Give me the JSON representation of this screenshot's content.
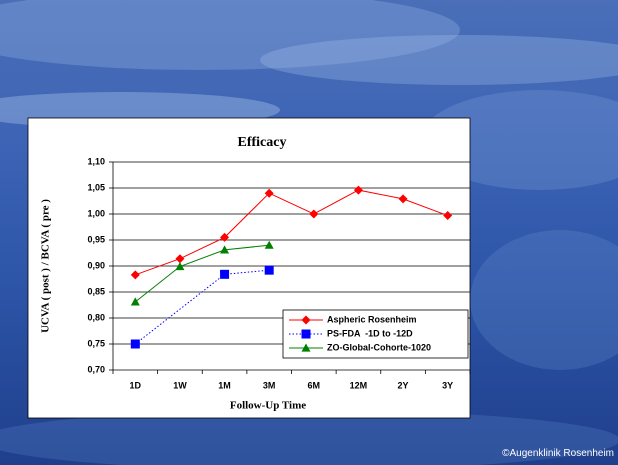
{
  "chart_data": {
    "type": "line",
    "title": "Efficacy",
    "x_label": "Follow-Up Time",
    "y_label": "UCVA ( post ) / BCVA ( pre )",
    "categories": [
      "1D",
      "1W",
      "1M",
      "3M",
      "6M",
      "12M",
      "2Y",
      "3Y"
    ],
    "series": [
      {
        "name": "Aspheric Rosenheim",
        "color": "#ff0000",
        "marker": "diamond",
        "dash": "solid",
        "values": [
          0.883,
          0.914,
          0.955,
          1.04,
          1.0,
          1.046,
          1.029,
          0.997
        ]
      },
      {
        "name": "PS-FDA  -1D to -12D",
        "color": "#0000ff",
        "marker": "square",
        "dash": "dotted",
        "values": [
          0.75,
          null,
          0.884,
          0.892,
          null,
          null,
          null,
          null
        ]
      },
      {
        "name": "ZO-Global-Cohorte-1020",
        "color": "#008000",
        "marker": "triangle",
        "dash": "solid",
        "values": [
          0.831,
          0.899,
          0.931,
          0.94,
          null,
          null,
          null,
          null
        ]
      }
    ],
    "connect_gaps": true,
    "ylim": [
      0.7,
      1.1
    ],
    "yticks": [
      {
        "value": 0.7,
        "label": "0,70"
      },
      {
        "value": 0.75,
        "label": "0,75"
      },
      {
        "value": 0.8,
        "label": "0,80"
      },
      {
        "value": 0.85,
        "label": "0,85"
      },
      {
        "value": 0.9,
        "label": "0,90"
      },
      {
        "value": 0.95,
        "label": "0,95"
      },
      {
        "value": 1.0,
        "label": "1,00"
      },
      {
        "value": 1.05,
        "label": "1,05"
      },
      {
        "value": 1.1,
        "label": "1,10"
      }
    ],
    "grid": true,
    "legend": "lower right"
  },
  "footer": "©Augenklinik Rosenheim"
}
